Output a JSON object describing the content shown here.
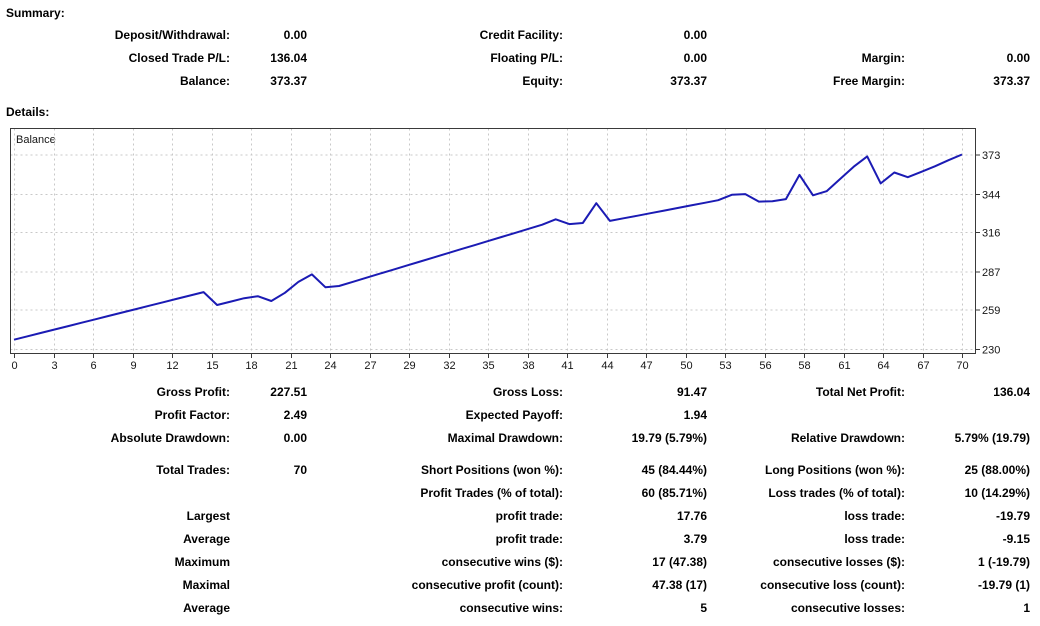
{
  "summary": {
    "heading": "Summary:",
    "rows": [
      {
        "c1l": "Deposit/Withdrawal:",
        "c1v": "0.00",
        "c2l": "Credit Facility:",
        "c2v": "0.00",
        "c3l": "",
        "c3v": ""
      },
      {
        "c1l": "Closed Trade P/L:",
        "c1v": "136.04",
        "c2l": "Floating P/L:",
        "c2v": "0.00",
        "c3l": "Margin:",
        "c3v": "0.00"
      },
      {
        "c1l": "Balance:",
        "c1v": "373.37",
        "c2l": "Equity:",
        "c2v": "373.37",
        "c3l": "Free Margin:",
        "c3v": "373.37"
      }
    ]
  },
  "details": {
    "heading": "Details:",
    "blocks": [
      {
        "rows": [
          {
            "c1l": "Gross Profit:",
            "c1v": "227.51",
            "c2l": "Gross Loss:",
            "c2v": "91.47",
            "c3l": "Total Net Profit:",
            "c3v": "136.04"
          },
          {
            "c1l": "Profit Factor:",
            "c1v": "2.49",
            "c2l": "Expected Payoff:",
            "c2v": "1.94",
            "c3l": "",
            "c3v": ""
          },
          {
            "c1l": "Absolute Drawdown:",
            "c1v": "0.00",
            "c2l": "Maximal Drawdown:",
            "c2v": "19.79 (5.79%)",
            "c3l": "Relative Drawdown:",
            "c3v": "5.79% (19.79)"
          }
        ]
      },
      {
        "rows": [
          {
            "c1l": "Total Trades:",
            "c1v": "70",
            "c2l": "Short Positions (won %):",
            "c2v": "45 (84.44%)",
            "c3l": "Long Positions (won %):",
            "c3v": "25 (88.00%)"
          },
          {
            "c1l": "",
            "c1v": "",
            "c2l": "Profit Trades (% of total):",
            "c2v": "60 (85.71%)",
            "c3l": "Loss trades (% of total):",
            "c3v": "10 (14.29%)"
          },
          {
            "c1l": "Largest",
            "c1v": "",
            "c2l": "profit trade:",
            "c2v": "17.76",
            "c3l": "loss trade:",
            "c3v": "-19.79"
          },
          {
            "c1l": "Average",
            "c1v": "",
            "c2l": "profit trade:",
            "c2v": "3.79",
            "c3l": "loss trade:",
            "c3v": "-9.15"
          },
          {
            "c1l": "Maximum",
            "c1v": "",
            "c2l": "consecutive wins ($):",
            "c2v": "17 (47.38)",
            "c3l": "consecutive losses ($):",
            "c3v": "1 (-19.79)"
          },
          {
            "c1l": "Maximal",
            "c1v": "",
            "c2l": "consecutive profit (count):",
            "c2v": "47.38 (17)",
            "c3l": "consecutive loss (count):",
            "c3v": "-19.79 (1)"
          },
          {
            "c1l": "Average",
            "c1v": "",
            "c2l": "consecutive wins:",
            "c2v": "5",
            "c3l": "consecutive losses:",
            "c3v": "1"
          }
        ]
      }
    ]
  },
  "chart_data": {
    "type": "line",
    "title": "Balance",
    "xlabel": "",
    "ylabel": "",
    "xlim": [
      0,
      70
    ],
    "ylim": [
      227.2,
      392.5
    ],
    "grid": "dashed",
    "legend_position": "inside-top-left",
    "x_tick_labels": [
      "0",
      "3",
      "6",
      "9",
      "12",
      "15",
      "18",
      "21",
      "24",
      "27",
      "29",
      "32",
      "35",
      "38",
      "41",
      "44",
      "47",
      "50",
      "53",
      "56",
      "58",
      "61",
      "64",
      "67",
      "70"
    ],
    "y_ticks": [
      373,
      344,
      316,
      287,
      259,
      230
    ],
    "series": [
      {
        "name": "Balance",
        "color": "#1b1bb4",
        "x_step": 1,
        "values": [
          237.33,
          239.8,
          242.3,
          244.8,
          247.3,
          249.8,
          252.3,
          254.8,
          257.3,
          259.8,
          262.3,
          264.8,
          267.3,
          269.8,
          272.3,
          262.8,
          265.3,
          267.8,
          269.3,
          265.8,
          271.8,
          279.8,
          285.3,
          275.8,
          276.8,
          279.8,
          282.8,
          285.8,
          288.8,
          291.8,
          294.8,
          297.8,
          300.8,
          303.8,
          306.8,
          309.8,
          312.8,
          315.8,
          318.8,
          321.8,
          325.8,
          322.3,
          323.1,
          337.6,
          324.6,
          326.5,
          328.4,
          330.3,
          332.2,
          334.1,
          336,
          337.9,
          339.8,
          343.8,
          344.3,
          338.8,
          339.1,
          340.6,
          358.4,
          343.4,
          346.4,
          355.4,
          364.4,
          372,
          352.2,
          360.2,
          356.7,
          360.7,
          364.7,
          369.2,
          373.37
        ]
      }
    ]
  },
  "colors": {
    "line": "#1b1bb4",
    "grid": "#c8c8c8",
    "border": "#3a3a3a",
    "text": "#000000",
    "background": "#ffffff"
  }
}
